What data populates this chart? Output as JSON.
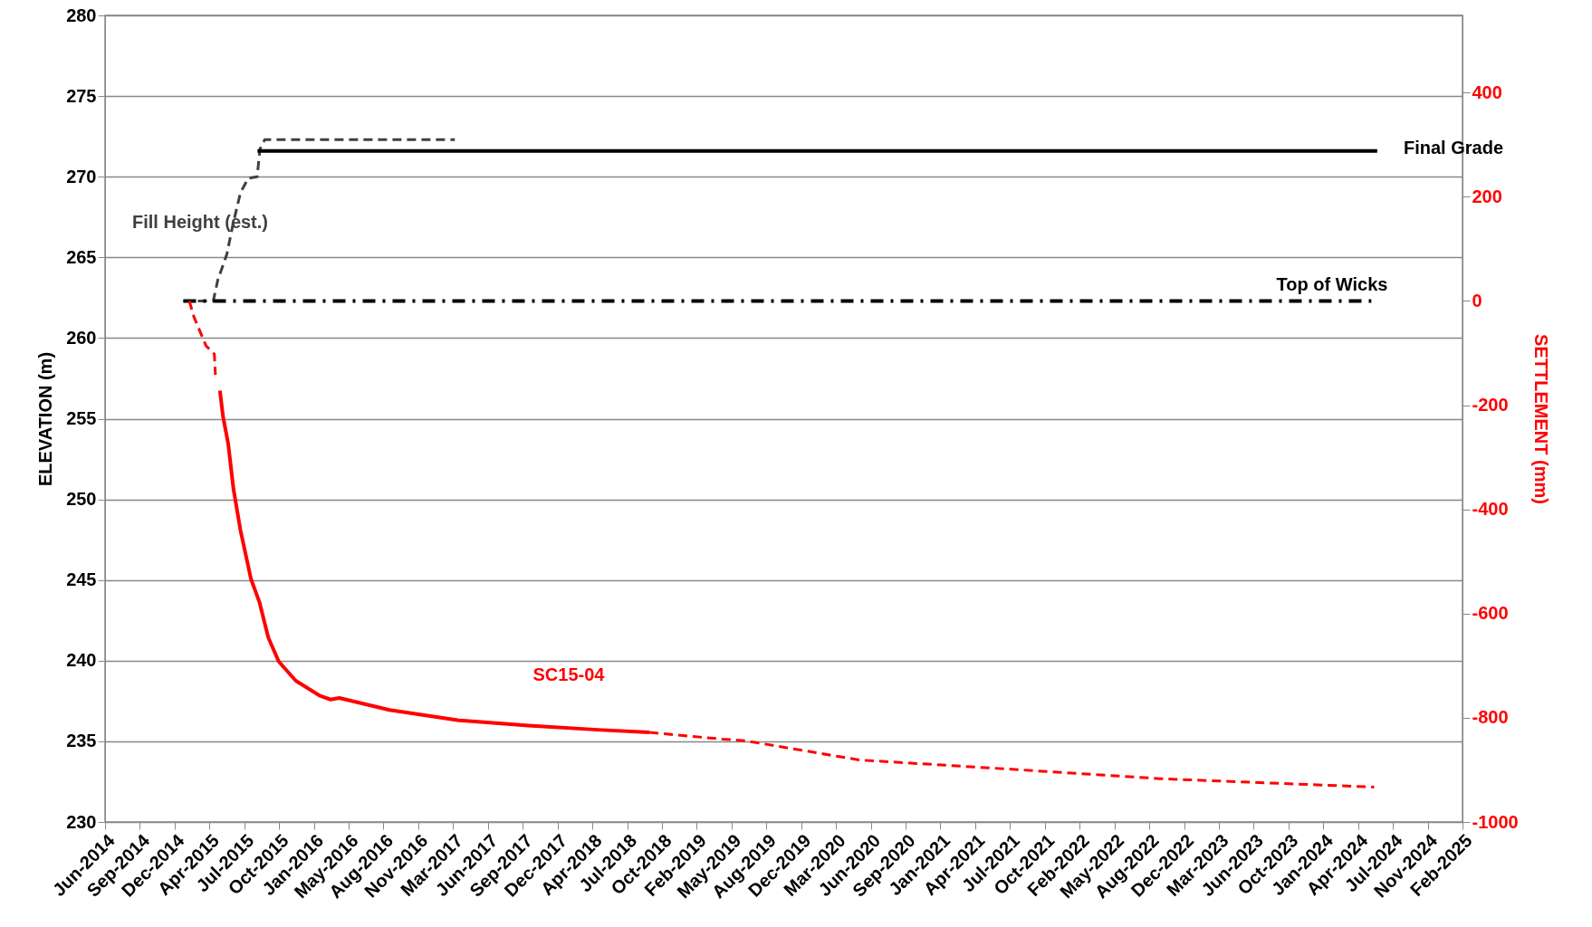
{
  "chart_data": {
    "type": "line",
    "ylabel": "ELEVATION (m)",
    "y2label": "SETTLEMENT (mm)",
    "xlim": [
      "2014-06-10",
      "2025-02-12"
    ],
    "xticks": [
      {
        "value": "2014-06-10",
        "label": "Jun-2014"
      },
      {
        "value": "2014-09-18",
        "label": "Sep-2014"
      },
      {
        "value": "2014-12-27",
        "label": "Dec-2014"
      },
      {
        "value": "2015-04-06",
        "label": "Apr-2015"
      },
      {
        "value": "2015-07-15",
        "label": "Jul-2015"
      },
      {
        "value": "2015-10-23",
        "label": "Oct-2015"
      },
      {
        "value": "2016-01-31",
        "label": "Jan-2016"
      },
      {
        "value": "2016-05-10",
        "label": "May-2016"
      },
      {
        "value": "2016-08-18",
        "label": "Aug-2016"
      },
      {
        "value": "2016-11-26",
        "label": "Nov-2016"
      },
      {
        "value": "2017-03-06",
        "label": "Mar-2017"
      },
      {
        "value": "2017-06-14",
        "label": "Jun-2017"
      },
      {
        "value": "2017-09-22",
        "label": "Sep-2017"
      },
      {
        "value": "2017-12-31",
        "label": "Dec-2017"
      },
      {
        "value": "2018-04-10",
        "label": "Apr-2018"
      },
      {
        "value": "2018-07-19",
        "label": "Jul-2018"
      },
      {
        "value": "2018-10-27",
        "label": "Oct-2018"
      },
      {
        "value": "2019-02-04",
        "label": "Feb-2019"
      },
      {
        "value": "2019-05-15",
        "label": "May-2019"
      },
      {
        "value": "2019-08-23",
        "label": "Aug-2019"
      },
      {
        "value": "2019-12-01",
        "label": "Dec-2019"
      },
      {
        "value": "2020-03-10",
        "label": "Mar-2020"
      },
      {
        "value": "2020-06-18",
        "label": "Jun-2020"
      },
      {
        "value": "2020-09-26",
        "label": "Sep-2020"
      },
      {
        "value": "2021-01-04",
        "label": "Jan-2021"
      },
      {
        "value": "2021-04-14",
        "label": "Apr-2021"
      },
      {
        "value": "2021-07-23",
        "label": "Jul-2021"
      },
      {
        "value": "2021-10-31",
        "label": "Oct-2021"
      },
      {
        "value": "2022-02-08",
        "label": "Feb-2022"
      },
      {
        "value": "2022-05-19",
        "label": "May-2022"
      },
      {
        "value": "2022-08-27",
        "label": "Aug-2022"
      },
      {
        "value": "2022-12-05",
        "label": "Dec-2022"
      },
      {
        "value": "2023-03-15",
        "label": "Mar-2023"
      },
      {
        "value": "2023-06-23",
        "label": "Jun-2023"
      },
      {
        "value": "2023-10-01",
        "label": "Oct-2023"
      },
      {
        "value": "2024-01-09",
        "label": "Jan-2024"
      },
      {
        "value": "2024-04-18",
        "label": "Apr-2024"
      },
      {
        "value": "2024-07-27",
        "label": "Jul-2024"
      },
      {
        "value": "2024-11-04",
        "label": "Nov-2024"
      },
      {
        "value": "2025-02-12",
        "label": "Feb-2025"
      }
    ],
    "ylim": [
      230,
      280
    ],
    "yticks": [
      230,
      235,
      240,
      245,
      250,
      255,
      260,
      265,
      270,
      275,
      280
    ],
    "y2lim": [
      -1000,
      548
    ],
    "y2ticks": [
      -1000,
      -800,
      -600,
      -400,
      -200,
      0,
      200,
      400
    ],
    "grid": "y",
    "series": [
      {
        "name": "Fill Height (est.)",
        "color": "#404040",
        "line_style": "dashed",
        "x": [
          "2015-01-21",
          "2015-04-17",
          "2015-04-30",
          "2015-05-26",
          "2015-06-13",
          "2015-07-04",
          "2015-07-26",
          "2015-08-21",
          "2015-08-29",
          "2015-09-12",
          "2017-03-11"
        ],
        "values": [
          262.3,
          262.3,
          263.6,
          265.2,
          267.1,
          269.0,
          269.9,
          270.0,
          271.7,
          272.3,
          272.3
        ]
      },
      {
        "name": "Final Grade",
        "color": "#000000",
        "line_style": "solid",
        "x": [
          "2015-08-22",
          "2024-06-12"
        ],
        "values": [
          271.6,
          271.6
        ]
      },
      {
        "name": "Top of Wicks",
        "color": "#000000",
        "line_style": "dashdot",
        "x": [
          "2015-01-21",
          "2024-05-26"
        ],
        "values": [
          262.3,
          262.3
        ]
      },
      {
        "color": "#ff0000",
        "line_style": "dashed",
        "axis": "y2",
        "x": [
          "2015-02-07",
          "2015-02-20",
          "2015-03-27",
          "2015-04-20",
          "2015-04-23"
        ],
        "values": [
          0,
          -30,
          -86,
          -102,
          -142
        ]
      },
      {
        "name": "SC15-04",
        "color": "#ff0000",
        "line_style": "solid",
        "axis": "y2",
        "x": [
          "2015-05-06",
          "2015-05-15",
          "2015-05-30",
          "2015-06-14",
          "2015-07-04",
          "2015-08-03",
          "2015-08-28",
          "2015-09-22",
          "2015-10-22",
          "2015-12-10",
          "2016-02-18",
          "2016-03-19",
          "2016-04-13",
          "2016-09-04",
          "2017-03-23",
          "2017-10-08",
          "2018-04-25",
          "2018-09-21"
        ],
        "values": [
          -172,
          -222,
          -275,
          -361,
          -440,
          -533,
          -579,
          -646,
          -692,
          -729,
          -758,
          -765,
          -762,
          -785,
          -805,
          -815,
          -823,
          -828
        ]
      },
      {
        "color": "#ff0000",
        "line_style": "dashed",
        "axis": "y2",
        "x": [
          "2018-09-21",
          "2019-04-18",
          "2019-06-23",
          "2020-05-16",
          "2021-07-08",
          "2022-09-30",
          "2024-06-03"
        ],
        "values": [
          -828,
          -841,
          -844,
          -881,
          -898,
          -917,
          -933
        ]
      }
    ]
  }
}
